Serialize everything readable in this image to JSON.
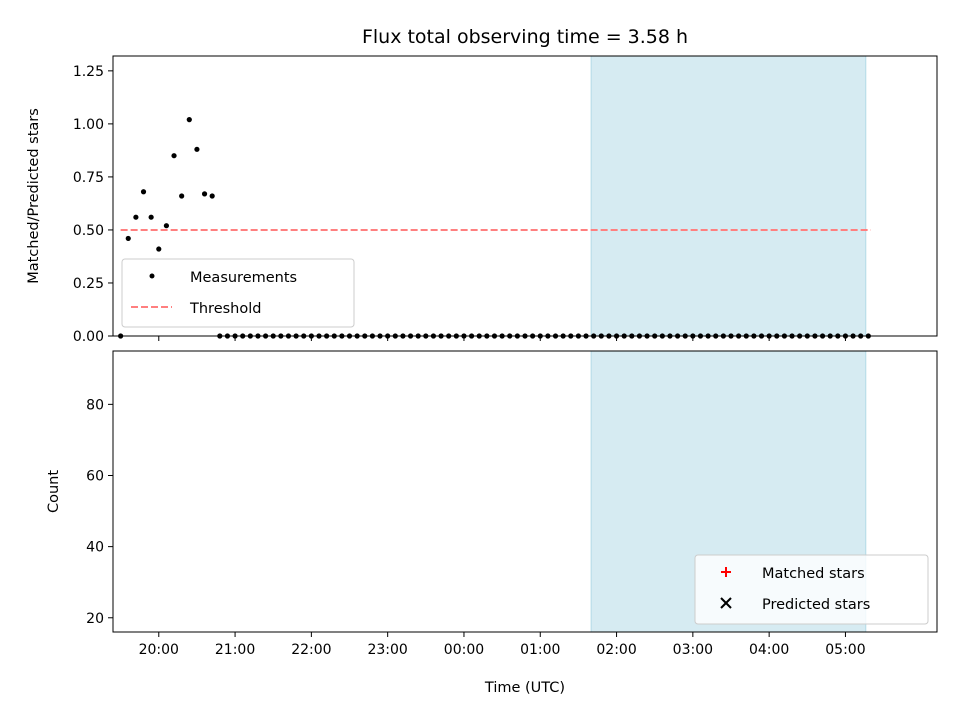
{
  "chart_data": {
    "title": "Flux total observing time = 3.58 h",
    "xlabel": "Time (UTC)",
    "x_tick_labels": [
      "20:00",
      "21:00",
      "22:00",
      "23:00",
      "00:00",
      "01:00",
      "02:00",
      "03:00",
      "04:00",
      "05:00"
    ],
    "x_axis": {
      "start": "19:24",
      "end": "06:12",
      "tick_hours": [
        20,
        21,
        22,
        23,
        24,
        25,
        26,
        27,
        28,
        29
      ]
    },
    "highlight_span": {
      "start": "01:40",
      "end": "05:16",
      "color": "#add8e6"
    },
    "panels": [
      {
        "type": "scatter",
        "ylabel": "Matched/Predicted stars",
        "ylim": [
          0,
          1.32
        ],
        "y_ticks": [
          0.0,
          0.25,
          0.5,
          0.75,
          1.0,
          1.25
        ],
        "y_tick_labels": [
          "0.00",
          "0.25",
          "0.50",
          "0.75",
          "1.00",
          "1.25"
        ],
        "legend": {
          "position": "lower-left",
          "entries": [
            {
              "label": "Measurements",
              "marker": "dot",
              "color": "#000000"
            },
            {
              "label": "Threshold",
              "marker": "dashed-line",
              "color": "#ff7f7f"
            }
          ]
        },
        "threshold": {
          "value": 0.5,
          "start": "19:30",
          "end": "05:20",
          "color": "#ff7f7f"
        },
        "series": [
          {
            "name": "Measurements",
            "color": "#000000",
            "x": [
              "19:30",
              "19:36",
              "19:42",
              "19:48",
              "19:54",
              "20:00",
              "20:06",
              "20:12",
              "20:18",
              "20:24",
              "20:30",
              "20:36",
              "20:42",
              "20:48",
              "20:54",
              "21:00",
              "21:06",
              "21:12",
              "21:18",
              "21:24",
              "21:30",
              "21:36",
              "21:42",
              "21:48",
              "21:54",
              "22:00",
              "22:06",
              "22:12",
              "22:18",
              "22:24",
              "22:30",
              "22:36",
              "22:42",
              "22:48",
              "22:54",
              "23:00",
              "23:06",
              "23:12",
              "23:18",
              "23:24",
              "23:30",
              "23:36",
              "23:42",
              "23:48",
              "23:54",
              "00:00",
              "00:06",
              "00:12",
              "00:18",
              "00:24",
              "00:30",
              "00:36",
              "00:42",
              "00:48",
              "00:54",
              "01:00",
              "01:06",
              "01:12",
              "01:18",
              "01:24",
              "01:30",
              "01:36",
              "01:42",
              "01:48",
              "01:54",
              "02:00",
              "02:06",
              "02:12",
              "02:18",
              "02:24",
              "02:30",
              "02:36",
              "02:42",
              "02:48",
              "02:54",
              "03:00",
              "03:06",
              "03:12",
              "03:18",
              "03:24",
              "03:30",
              "03:36",
              "03:42",
              "03:48",
              "03:54",
              "04:00",
              "04:06",
              "04:12",
              "04:18",
              "04:24",
              "04:30",
              "04:36",
              "04:42",
              "04:48",
              "04:54",
              "05:00",
              "05:06",
              "05:12",
              "05:18"
            ],
            "y": [
              0.0,
              0.46,
              0.56,
              0.68,
              0.56,
              0.41,
              0.52,
              0.85,
              0.66,
              1.02,
              0.88,
              0.67,
              0.66,
              0.0,
              0.0,
              0.0,
              0.0,
              0.0,
              0.0,
              0.0,
              0.0,
              0.0,
              0.0,
              0.0,
              0.0,
              0.0,
              0.0,
              0.0,
              0.0,
              0.0,
              0.0,
              0.0,
              0.0,
              0.0,
              0.0,
              0.0,
              0.0,
              0.0,
              0.0,
              0.0,
              0.0,
              0.0,
              0.0,
              0.0,
              0.0,
              0.0,
              0.0,
              0.0,
              0.0,
              0.0,
              0.0,
              0.0,
              0.0,
              0.0,
              0.0,
              0.0,
              0.0,
              0.0,
              0.0,
              0.0,
              0.0,
              0.0,
              0.0,
              0.0,
              0.0,
              0.0,
              0.0,
              0.0,
              0.0,
              0.0,
              0.0,
              0.0,
              0.0,
              0.0,
              0.0,
              0.0,
              0.0,
              0.0,
              0.0,
              0.0,
              0.0,
              0.0,
              0.0,
              0.0,
              0.0,
              0.0,
              0.0,
              0.0,
              0.0,
              0.0,
              0.0,
              0.0,
              0.0,
              0.0,
              0.0,
              0.0,
              0.0,
              0.0,
              0.0
            ]
          }
        ]
      },
      {
        "type": "scatter",
        "ylabel": "Count",
        "ylim": [
          16,
          95
        ],
        "y_ticks": [
          20,
          40,
          60,
          80
        ],
        "y_tick_labels": [
          "20",
          "40",
          "60",
          "80"
        ],
        "legend": {
          "position": "lower-right",
          "entries": [
            {
              "label": "Matched stars",
              "marker": "plus",
              "color": "#ff0000"
            },
            {
              "label": "Predicted stars",
              "marker": "x",
              "color": "#000000"
            }
          ]
        },
        "series": [
          {
            "name": "Matched stars",
            "marker": "plus",
            "color": "#ff0000",
            "x": [],
            "y": []
          },
          {
            "name": "Predicted stars",
            "marker": "x",
            "color": "#000000",
            "x": [],
            "y": []
          }
        ]
      }
    ]
  }
}
